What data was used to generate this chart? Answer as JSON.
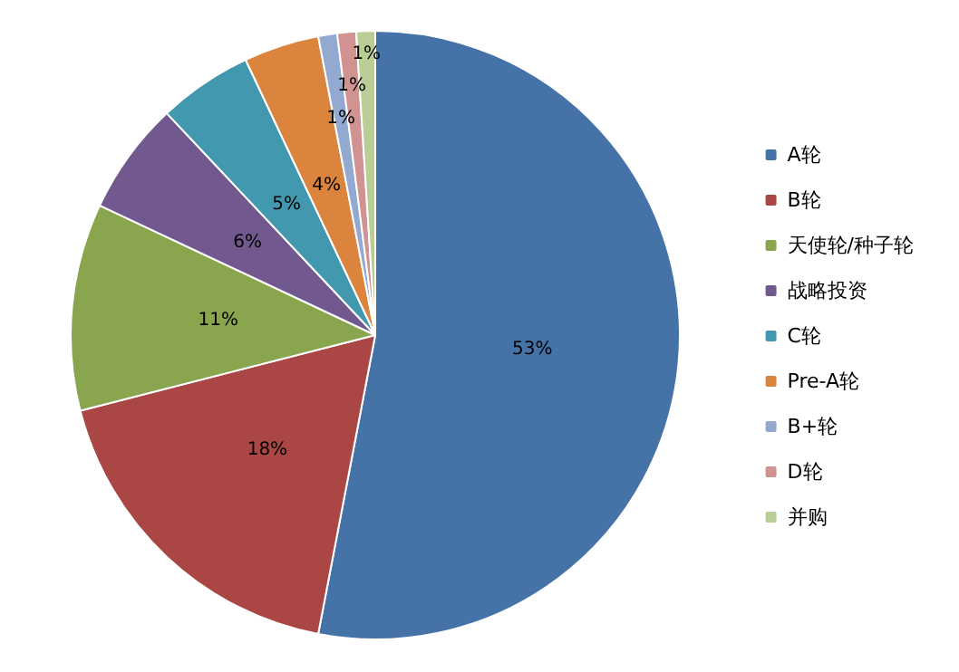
{
  "chart_data": {
    "type": "pie",
    "categories": [
      "A轮",
      "B轮",
      "天使轮/种子轮",
      "战略投资",
      "C轮",
      "Pre-A轮",
      "B+轮",
      "D轮",
      "并购"
    ],
    "values": [
      53,
      18,
      11,
      6,
      5,
      4,
      1,
      1,
      1
    ],
    "value_labels": [
      "53%",
      "18%",
      "11%",
      "6%",
      "5%",
      "4%",
      "1%",
      "1%",
      "1%"
    ],
    "colors": [
      "#4572a7",
      "#aa4643",
      "#89a54e",
      "#71588f",
      "#4198af",
      "#db843d",
      "#93a9cf",
      "#d19392",
      "#b9cd96"
    ],
    "legend": "right"
  }
}
